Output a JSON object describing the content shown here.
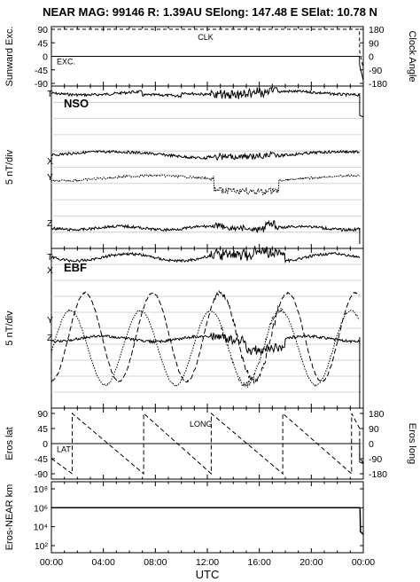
{
  "title": "NEAR MAG: 99146  R: 1.39AU  SElong:  147.48 E  SElat:   10.78 N",
  "chart_data": [
    {
      "type": "line",
      "panel": "sunward-exc-clock-angle",
      "ylabel_left": "Sunward Exc.",
      "ylabel_right": "Clock Angle",
      "left_ticks": [
        "90",
        "45",
        "0",
        "-45",
        "-90"
      ],
      "right_ticks": [
        "180",
        "90",
        "0",
        "-90",
        "-180"
      ],
      "ylim": [
        -90,
        90
      ],
      "annotations": [
        "CLK",
        "EXC."
      ],
      "series": [
        {
          "name": "CLK",
          "style": "dashed",
          "x_hours": [
            0,
            23.7,
            23.72,
            24
          ],
          "y": [
            90,
            90,
            15,
            -40
          ]
        },
        {
          "name": "EXC.",
          "style": "solid",
          "x_hours": [
            0,
            23.7,
            23.72,
            24
          ],
          "y": [
            0,
            0,
            -30,
            -80
          ]
        }
      ]
    },
    {
      "type": "line",
      "panel": "nso",
      "ylabel_left": "5 nT/div",
      "label": "NSO",
      "components": [
        "T",
        "X",
        "Y",
        "Z"
      ],
      "series_baselines_div": {
        "T": 0.6,
        "X": 4.2,
        "Y": 5.1,
        "Z": 7.5
      }
    },
    {
      "type": "line",
      "panel": "ebf",
      "ylabel_left": "5 nT/div",
      "label": "EBF",
      "components": [
        "T",
        "X",
        "Y",
        "Z"
      ]
    },
    {
      "type": "line",
      "panel": "eros-lat-long",
      "ylabel_left": "Eros lat",
      "ylabel_right": "Eros long",
      "left_ticks": [
        "90",
        "45",
        "0",
        "-45",
        "-90"
      ],
      "right_ticks": [
        "180",
        "90",
        "0",
        "-90",
        "-180"
      ],
      "ylim": [
        -90,
        90
      ],
      "annotations": [
        "LONG",
        "LAT"
      ],
      "series": [
        {
          "name": "LAT",
          "style": "solid",
          "value": 0
        },
        {
          "name": "LONG",
          "style": "dashed",
          "wrap_hours": [
            1.6,
            7.1,
            12.3,
            17.8,
            23.1
          ]
        }
      ]
    },
    {
      "type": "line",
      "panel": "eros-near-km",
      "ylabel_left": "Eros-NEAR km",
      "scale": "log",
      "left_ticks": [
        "10⁸",
        "10⁶",
        "10⁴",
        "10²"
      ],
      "series": [
        {
          "name": "",
          "style": "solid",
          "x_hours": [
            0,
            23.75,
            23.78,
            24
          ],
          "y": [
            1000000,
            1000000,
            3000,
            1500
          ]
        }
      ]
    }
  ],
  "x_axis": {
    "label": "UTC",
    "ticks": [
      "00:00",
      "04:00",
      "08:00",
      "12:00",
      "16:00",
      "20:00",
      "00:00"
    ],
    "range_hours": [
      0,
      24
    ]
  }
}
